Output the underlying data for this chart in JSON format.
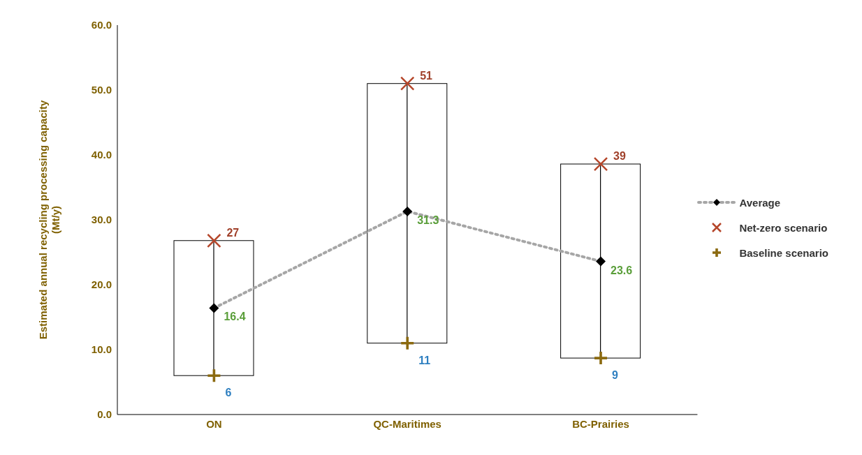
{
  "chart_data": {
    "type": "scatter",
    "ylabel": "Estimated annual recycling processing capacity (Mt/y)",
    "categories": [
      "ON",
      "QC-Maritimes",
      "BC-Prairies"
    ],
    "series": [
      {
        "type": "bar",
        "color": "#ffffff",
        "base": [
          6,
          11,
          8.7
        ],
        "values": [
          20.8,
          40,
          29.9
        ]
      },
      {
        "type": "line",
        "name": "Average",
        "color": "#a6a6a6",
        "marker": "diamond",
        "line_style": "dotted",
        "values": [
          16.4,
          31.3,
          23.6
        ],
        "value_labels": [
          "16.4",
          "31.3",
          "23.6"
        ]
      },
      {
        "name": "Net-zero scenario",
        "color": "#b5462a",
        "marker": "cross",
        "values": [
          26.8,
          51,
          38.6
        ],
        "value_labels": [
          "27",
          "51",
          "39"
        ]
      },
      {
        "name": "Baseline scenario",
        "color": "#8b6a10",
        "marker": "plus",
        "values": [
          6,
          11,
          8.7
        ],
        "value_labels": [
          "6",
          "11",
          "9"
        ]
      }
    ],
    "ylim": [
      0,
      60
    ],
    "yticks": [
      {
        "value": 0,
        "label": "0.0"
      },
      {
        "value": 10,
        "label": "10.0"
      },
      {
        "value": 20,
        "label": "20.0"
      },
      {
        "value": 30,
        "label": "30.0"
      },
      {
        "value": 40,
        "label": "40.0"
      },
      {
        "value": 50,
        "label": "50.0"
      },
      {
        "value": 60,
        "label": "60.0"
      }
    ],
    "grid": false,
    "legend": "right"
  }
}
